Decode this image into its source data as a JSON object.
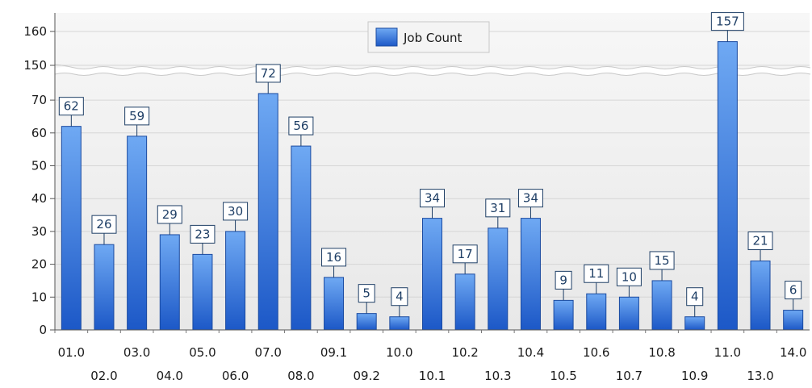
{
  "chart_data": {
    "type": "bar",
    "categories": [
      "01.0",
      "02.0",
      "03.0",
      "04.0",
      "05.0",
      "06.0",
      "07.0",
      "08.0",
      "09.1",
      "09.2",
      "10.0",
      "10.1",
      "10.2",
      "10.3",
      "10.4",
      "10.5",
      "10.6",
      "10.7",
      "10.8",
      "10.9",
      "11.0",
      "13.0",
      "14.0"
    ],
    "series": [
      {
        "name": "Job Count",
        "values": [
          62,
          26,
          59,
          29,
          23,
          30,
          72,
          56,
          16,
          5,
          4,
          34,
          17,
          31,
          34,
          9,
          11,
          10,
          15,
          4,
          157,
          21,
          6
        ]
      }
    ],
    "y_ticks_lower": [
      "0",
      "10",
      "20",
      "30",
      "40",
      "50",
      "60",
      "70"
    ],
    "y_ticks_upper": [
      "150",
      "160"
    ],
    "ylim_lower": [
      0,
      75
    ],
    "ylim_upper": [
      148,
      165
    ],
    "scale_break": true,
    "grid": true,
    "legend_position": "top-center",
    "title": "",
    "xlabel": "",
    "ylabel": ""
  },
  "colors": {
    "bar_top": "#6fa9f3",
    "bar_bottom": "#1c58c7",
    "bar_edge": "#1a4aa0",
    "label_border": "#1f3f66",
    "grid": "#d6d6d6",
    "plot_bg": "#ededed"
  }
}
